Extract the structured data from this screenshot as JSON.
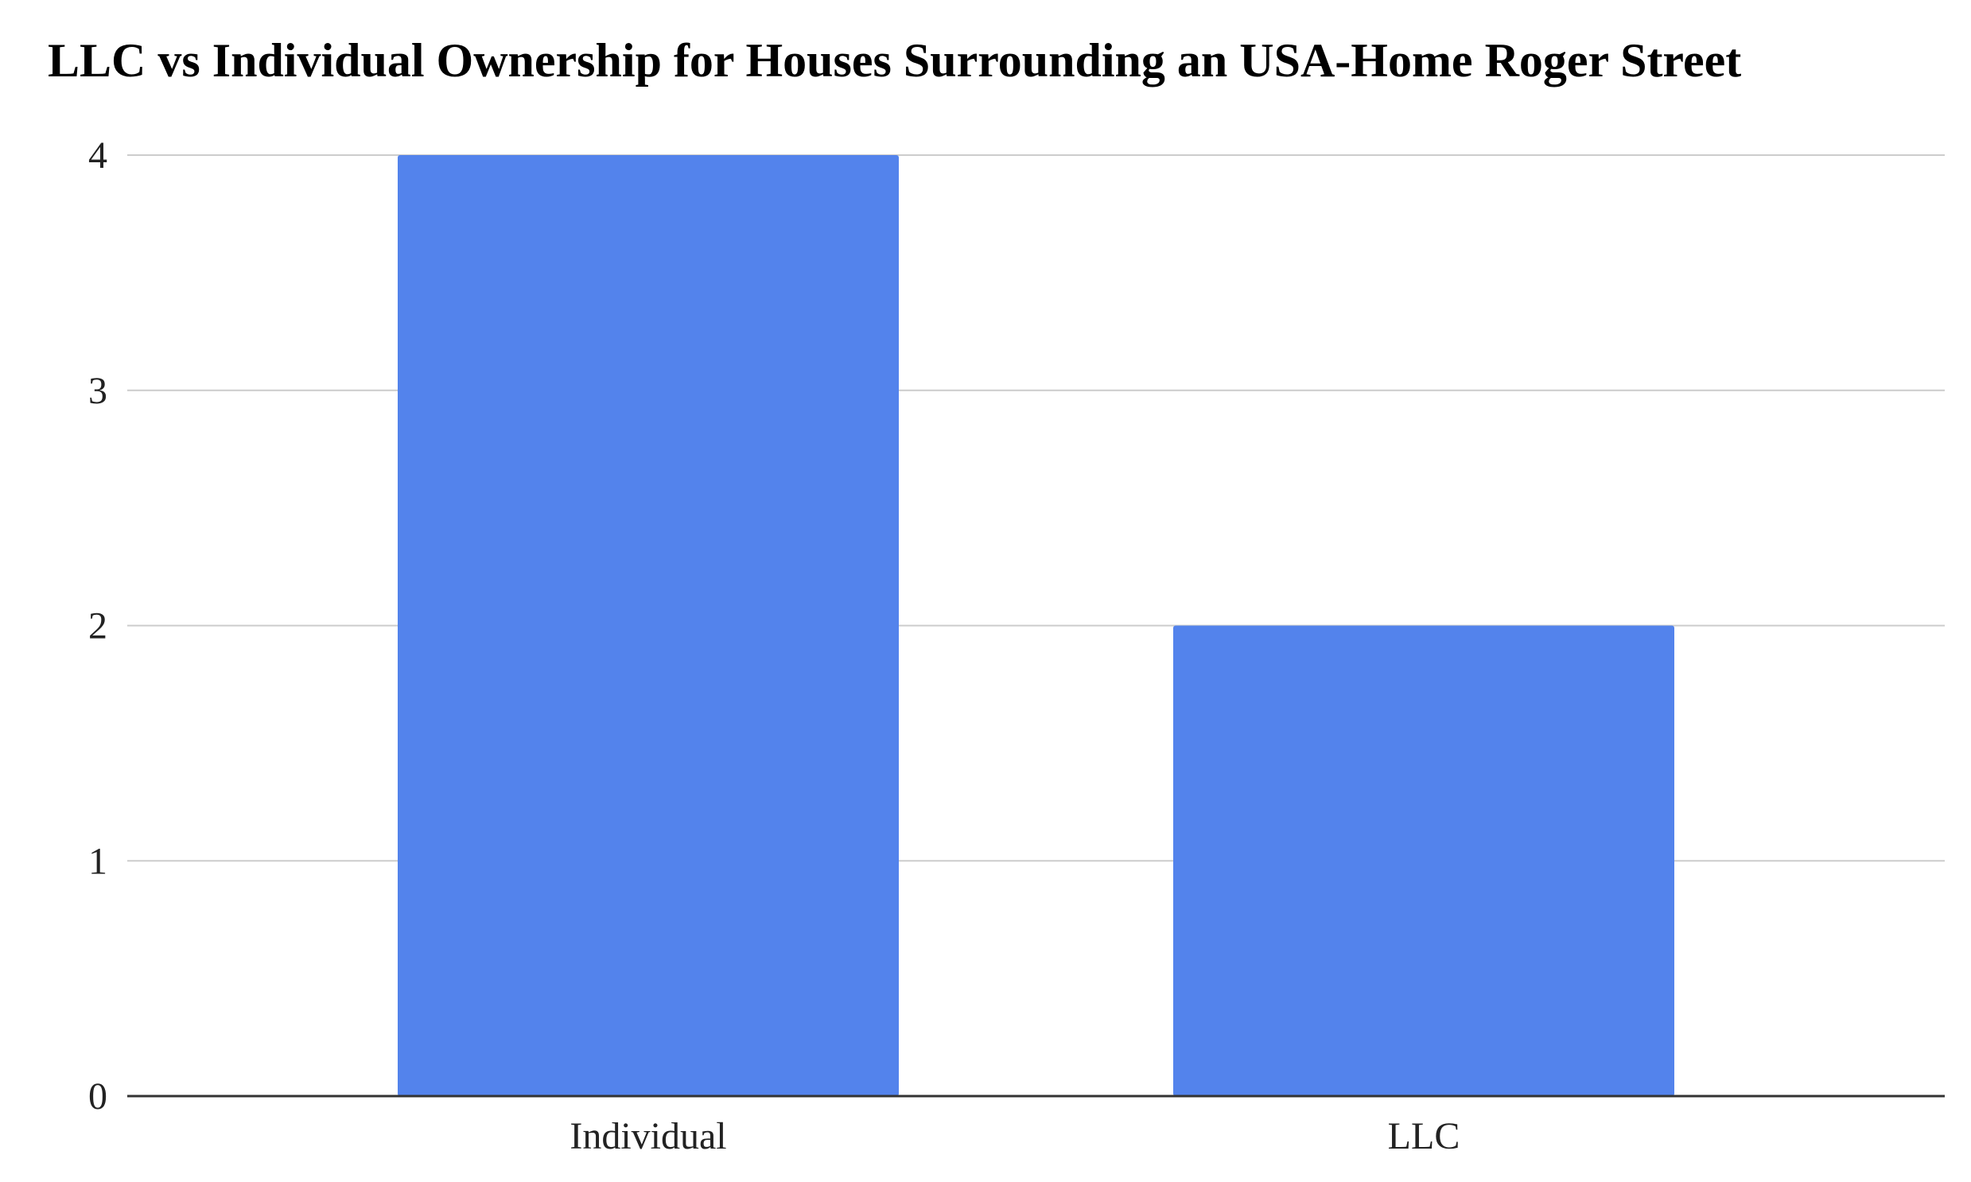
{
  "chart_data": {
    "type": "bar",
    "title": "LLC vs Individual Ownership for Houses Surrounding an USA-Home Roger Street",
    "xlabel": "",
    "ylabel": "",
    "categories": [
      "Individual",
      "LLC"
    ],
    "values": [
      4,
      2
    ],
    "ylim": [
      0,
      4
    ],
    "yticks": [
      "0",
      "1",
      "2",
      "3",
      "4"
    ],
    "grid": true,
    "legend": "none",
    "bar_color": "#5383EC",
    "grid_color": "#CCCCCC",
    "axis_color": "#333333"
  }
}
